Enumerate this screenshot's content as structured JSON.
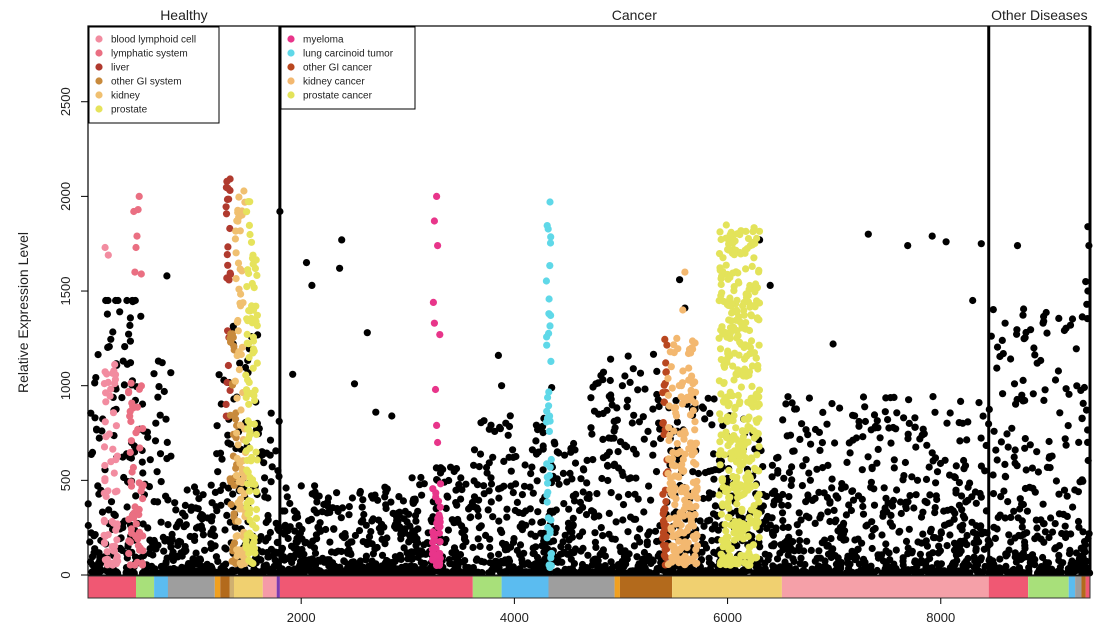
{
  "chart_data": {
    "type": "scatter",
    "ylabel": "Relative Expression Level",
    "xlabel": "",
    "xlim": [
      0,
      9400
    ],
    "ylim": [
      0,
      2900
    ],
    "x_ticks": [
      2000,
      4000,
      6000,
      8000
    ],
    "y_ticks": [
      0,
      500,
      1000,
      1500,
      2000,
      2500
    ],
    "grid": false,
    "sections": [
      {
        "title": "Healthy",
        "x_start": 0,
        "x_end": 1800
      },
      {
        "title": "Cancer",
        "x_start": 1800,
        "x_end": 8450
      },
      {
        "title": "Other Diseases",
        "x_start": 8450,
        "x_end": 9400
      }
    ],
    "legends": [
      {
        "placement": "top-left of Healthy panel",
        "entries": [
          {
            "label": "blood lymphoid cell",
            "color": "#f28ca0"
          },
          {
            "label": "lymphatic system",
            "color": "#ea6f82"
          },
          {
            "label": "liver",
            "color": "#b03a2e"
          },
          {
            "label": "other GI system",
            "color": "#c88a3c"
          },
          {
            "label": "kidney",
            "color": "#f0c070"
          },
          {
            "label": "prostate",
            "color": "#e6e35c"
          }
        ]
      },
      {
        "placement": "top-left of Cancer panel",
        "entries": [
          {
            "label": "myeloma",
            "color": "#e8358a"
          },
          {
            "label": "lung carcinoid tumor",
            "color": "#5fd8e8"
          },
          {
            "label": "other GI cancer",
            "color": "#b9471f"
          },
          {
            "label": "kidney cancer",
            "color": "#f3b870"
          },
          {
            "label": "prostate cancer",
            "color": "#e3e35a"
          }
        ]
      }
    ],
    "highlight_series": [
      {
        "name": "blood lymphoid cell",
        "color": "#f28ca0",
        "x_range": [
          150,
          280
        ],
        "y_range": [
          50,
          1150
        ],
        "n": 60,
        "outliers": [
          [
            160,
            1730
          ],
          [
            190,
            1690
          ]
        ]
      },
      {
        "name": "lymphatic system",
        "color": "#ea6f82",
        "x_range": [
          380,
          520
        ],
        "y_range": [
          50,
          1050
        ],
        "n": 55,
        "outliers": [
          [
            430,
            1920
          ],
          [
            470,
            1930
          ],
          [
            480,
            2000
          ],
          [
            460,
            1790
          ],
          [
            450,
            1730
          ],
          [
            500,
            1590
          ],
          [
            440,
            1600
          ]
        ]
      },
      {
        "name": "liver",
        "color": "#b03a2e",
        "x_range": [
          1290,
          1340
        ],
        "y_range": [
          800,
          2100
        ],
        "n": 25,
        "outliers": []
      },
      {
        "name": "other GI system",
        "color": "#c88a3c",
        "x_range": [
          1330,
          1400
        ],
        "y_range": [
          50,
          1300
        ],
        "n": 35,
        "outliers": []
      },
      {
        "name": "kidney",
        "color": "#f0c070",
        "x_range": [
          1380,
          1480
        ],
        "y_range": [
          50,
          2050
        ],
        "n": 80,
        "outliers": []
      },
      {
        "name": "prostate",
        "color": "#e6e35c",
        "x_range": [
          1480,
          1590
        ],
        "y_range": [
          50,
          2000
        ],
        "n": 110,
        "outliers": []
      },
      {
        "name": "myeloma",
        "color": "#e8358a",
        "x_range": [
          3230,
          3310
        ],
        "y_range": [
          50,
          500
        ],
        "n": 45,
        "outliers": [
          [
            3270,
            2000
          ],
          [
            3250,
            1870
          ],
          [
            3280,
            1740
          ],
          [
            3240,
            1440
          ],
          [
            3250,
            1330
          ],
          [
            3300,
            1270
          ],
          [
            3260,
            980
          ],
          [
            3270,
            790
          ],
          [
            3280,
            700
          ]
        ]
      },
      {
        "name": "lung carcinoid tumor",
        "color": "#5fd8e8",
        "x_range": [
          4300,
          4350
        ],
        "y_range": [
          20,
          2000
        ],
        "n": 45,
        "outliers": []
      },
      {
        "name": "other GI cancer",
        "color": "#b9471f",
        "x_range": [
          5390,
          5440
        ],
        "y_range": [
          50,
          1280
        ],
        "n": 45,
        "outliers": []
      },
      {
        "name": "kidney cancer",
        "color": "#f3b870",
        "x_range": [
          5440,
          5720
        ],
        "y_range": [
          50,
          1250
        ],
        "n": 190,
        "outliers": [
          [
            5600,
            1600
          ],
          [
            5580,
            1400
          ]
        ]
      },
      {
        "name": "prostate cancer",
        "color": "#e3e35a",
        "x_range": [
          5920,
          6300
        ],
        "y_range": [
          50,
          1850
        ],
        "n": 420,
        "outliers": []
      }
    ],
    "bottom_tissue_bar": [
      {
        "x_start": 0,
        "x_end": 450,
        "color": "#f05873"
      },
      {
        "x_start": 450,
        "x_end": 620,
        "color": "#a8e07a"
      },
      {
        "x_start": 620,
        "x_end": 750,
        "color": "#5bbcf0"
      },
      {
        "x_start": 750,
        "x_end": 1190,
        "color": "#9e9e9e"
      },
      {
        "x_start": 1190,
        "x_end": 1240,
        "color": "#f0a020"
      },
      {
        "x_start": 1240,
        "x_end": 1330,
        "color": "#b36a1c"
      },
      {
        "x_start": 1330,
        "x_end": 1370,
        "color": "#d0b070"
      },
      {
        "x_start": 1370,
        "x_end": 1640,
        "color": "#f0d070"
      },
      {
        "x_start": 1640,
        "x_end": 1770,
        "color": "#f59aa8"
      },
      {
        "x_start": 1770,
        "x_end": 1800,
        "color": "#7a3ab0"
      },
      {
        "x_start": 1800,
        "x_end": 3610,
        "color": "#f05873"
      },
      {
        "x_start": 3610,
        "x_end": 3880,
        "color": "#a8e07a"
      },
      {
        "x_start": 3880,
        "x_end": 4320,
        "color": "#5bbcf0"
      },
      {
        "x_start": 4320,
        "x_end": 4940,
        "color": "#9e9e9e"
      },
      {
        "x_start": 4940,
        "x_end": 4990,
        "color": "#f0a020"
      },
      {
        "x_start": 4990,
        "x_end": 5480,
        "color": "#b36a1c"
      },
      {
        "x_start": 5480,
        "x_end": 6510,
        "color": "#f0d070"
      },
      {
        "x_start": 6510,
        "x_end": 8450,
        "color": "#f5a0a8"
      },
      {
        "x_start": 8450,
        "x_end": 8820,
        "color": "#f05873"
      },
      {
        "x_start": 8820,
        "x_end": 9200,
        "color": "#a8e07a"
      },
      {
        "x_start": 9200,
        "x_end": 9260,
        "color": "#5bbcf0"
      },
      {
        "x_start": 9260,
        "x_end": 9320,
        "color": "#9e9e9e"
      },
      {
        "x_start": 9320,
        "x_end": 9360,
        "color": "#b36a1c"
      },
      {
        "x_start": 9360,
        "x_end": 9400,
        "color": "#f05873"
      }
    ]
  }
}
